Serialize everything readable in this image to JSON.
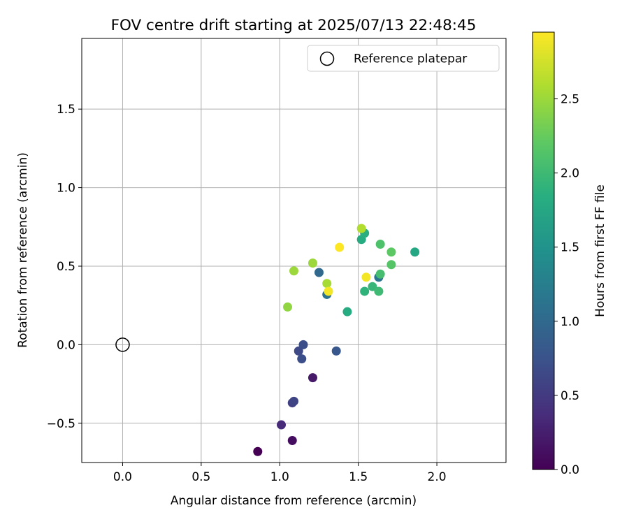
{
  "chart_data": {
    "type": "scatter",
    "title": "FOV centre drift starting at 2025/07/13 22:48:45",
    "xlabel": "Angular distance from reference (arcmin)",
    "ylabel": "Rotation from reference (arcmin)",
    "xlim": [
      -0.26,
      2.44
    ],
    "ylim": [
      -0.75,
      1.95
    ],
    "xticks": [
      0.0,
      0.5,
      1.0,
      1.5,
      2.0
    ],
    "xtick_labels": [
      "0.0",
      "0.5",
      "1.0",
      "1.5",
      "2.0"
    ],
    "yticks": [
      -0.5,
      0.0,
      0.5,
      1.0,
      1.5
    ],
    "ytick_labels": [
      "−0.5",
      "0.0",
      "0.5",
      "1.0",
      "1.5"
    ],
    "grid": true,
    "legend": {
      "position": "top-right",
      "entries": [
        {
          "label": "Reference platepar",
          "marker": "open-circle",
          "color": "#000000"
        }
      ]
    },
    "reference_point": {
      "x": 0.0,
      "y": 0.0
    },
    "colorbar": {
      "label": "Hours from first FF file",
      "colormap": "viridis",
      "range": [
        0.0,
        2.95
      ],
      "ticks": [
        0.0,
        0.5,
        1.0,
        1.5,
        2.0,
        2.5
      ],
      "tick_labels": [
        "0.0",
        "0.5",
        "1.0",
        "1.5",
        "2.0",
        "2.5"
      ]
    },
    "points": [
      {
        "x": 0.86,
        "y": -0.68,
        "hours": 0.0
      },
      {
        "x": 1.08,
        "y": -0.61,
        "hours": 0.1
      },
      {
        "x": 1.21,
        "y": -0.21,
        "hours": 0.2
      },
      {
        "x": 1.01,
        "y": -0.51,
        "hours": 0.35
      },
      {
        "x": 1.08,
        "y": -0.37,
        "hours": 0.55
      },
      {
        "x": 1.09,
        "y": -0.36,
        "hours": 0.6
      },
      {
        "x": 1.12,
        "y": -0.04,
        "hours": 0.65
      },
      {
        "x": 1.15,
        "y": 0.0,
        "hours": 0.7
      },
      {
        "x": 1.14,
        "y": -0.09,
        "hours": 0.7
      },
      {
        "x": 1.36,
        "y": -0.04,
        "hours": 0.8
      },
      {
        "x": 1.25,
        "y": 0.46,
        "hours": 1.0
      },
      {
        "x": 1.3,
        "y": 0.32,
        "hours": 1.1
      },
      {
        "x": 1.63,
        "y": 0.43,
        "hours": 1.15
      },
      {
        "x": 1.86,
        "y": 0.59,
        "hours": 1.75
      },
      {
        "x": 1.43,
        "y": 0.21,
        "hours": 1.8
      },
      {
        "x": 1.52,
        "y": 0.67,
        "hours": 1.8
      },
      {
        "x": 1.54,
        "y": 0.71,
        "hours": 1.85
      },
      {
        "x": 1.54,
        "y": 0.34,
        "hours": 1.9
      },
      {
        "x": 1.59,
        "y": 0.37,
        "hours": 1.95
      },
      {
        "x": 1.63,
        "y": 0.34,
        "hours": 2.0
      },
      {
        "x": 1.64,
        "y": 0.45,
        "hours": 2.05
      },
      {
        "x": 1.64,
        "y": 0.64,
        "hours": 2.1
      },
      {
        "x": 1.71,
        "y": 0.51,
        "hours": 2.15
      },
      {
        "x": 1.71,
        "y": 0.59,
        "hours": 2.2
      },
      {
        "x": 1.05,
        "y": 0.24,
        "hours": 2.45
      },
      {
        "x": 1.09,
        "y": 0.47,
        "hours": 2.5
      },
      {
        "x": 1.21,
        "y": 0.52,
        "hours": 2.5
      },
      {
        "x": 1.3,
        "y": 0.39,
        "hours": 2.55
      },
      {
        "x": 1.52,
        "y": 0.74,
        "hours": 2.6
      },
      {
        "x": 1.31,
        "y": 0.34,
        "hours": 2.9
      },
      {
        "x": 1.55,
        "y": 0.43,
        "hours": 2.9
      },
      {
        "x": 1.38,
        "y": 0.62,
        "hours": 2.95
      }
    ]
  }
}
